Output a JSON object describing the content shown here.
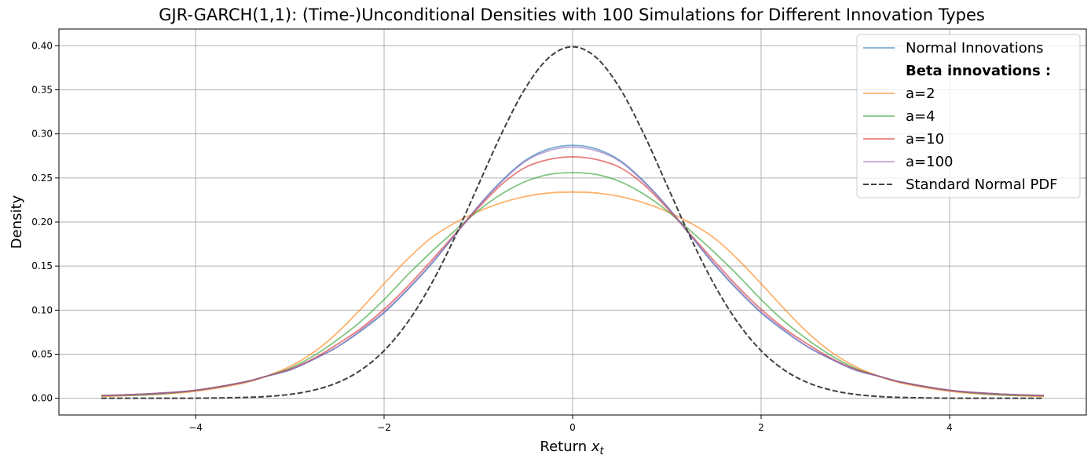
{
  "chart_data": {
    "type": "line",
    "title": "GJR-GARCH(1,1): (Time-)Unconditional Densities with 100 Simulations for Different Innovation Types",
    "xlabel_main": "Return ",
    "xlabel_var": "x",
    "xlabel_sub": "t",
    "ylabel": "Density",
    "xlim": [
      -5.45,
      5.45
    ],
    "ylim": [
      -0.019,
      0.419
    ],
    "grid": true,
    "legend_position": "top-right",
    "xticks": [
      -4,
      -2,
      0,
      2,
      4
    ],
    "xtick_labels": [
      "−4",
      "−2",
      "0",
      "2",
      "4"
    ],
    "yticks": [
      0.0,
      0.05,
      0.1,
      0.15,
      0.2,
      0.25,
      0.3,
      0.35,
      0.4
    ],
    "ytick_labels": [
      "0.00",
      "0.05",
      "0.10",
      "0.15",
      "0.20",
      "0.25",
      "0.30",
      "0.35",
      "0.40"
    ],
    "legend_header": "Beta innovations :",
    "x": [
      -5.0,
      -4.5,
      -4.0,
      -3.5,
      -3.25,
      -3.0,
      -2.75,
      -2.5,
      -2.25,
      -2.0,
      -1.75,
      -1.5,
      -1.25,
      -1.0,
      -0.75,
      -0.5,
      -0.25,
      0.0,
      0.25,
      0.5,
      0.75,
      1.0,
      1.25,
      1.5,
      1.75,
      2.0,
      2.25,
      2.5,
      2.75,
      3.0,
      3.25,
      3.5,
      4.0,
      4.5,
      5.0
    ],
    "series": [
      {
        "name": "Normal Innovations",
        "color": "#1f77b4",
        "dash": "solid",
        "values": [
          0.003,
          0.005,
          0.009,
          0.018,
          0.025,
          0.032,
          0.044,
          0.058,
          0.076,
          0.097,
          0.123,
          0.152,
          0.185,
          0.218,
          0.247,
          0.27,
          0.283,
          0.287,
          0.283,
          0.27,
          0.247,
          0.218,
          0.185,
          0.152,
          0.123,
          0.097,
          0.076,
          0.058,
          0.044,
          0.032,
          0.025,
          0.018,
          0.009,
          0.005,
          0.003
        ]
      },
      {
        "name": "a=2",
        "color": "#ff7f0e",
        "dash": "solid",
        "values": [
          0.002,
          0.004,
          0.008,
          0.017,
          0.025,
          0.036,
          0.052,
          0.074,
          0.101,
          0.13,
          0.158,
          0.182,
          0.199,
          0.212,
          0.222,
          0.229,
          0.233,
          0.234,
          0.233,
          0.229,
          0.222,
          0.212,
          0.199,
          0.182,
          0.158,
          0.13,
          0.101,
          0.074,
          0.052,
          0.036,
          0.025,
          0.017,
          0.008,
          0.004,
          0.002
        ]
      },
      {
        "name": "a=4",
        "color": "#2ca02c",
        "dash": "solid",
        "values": [
          0.003,
          0.004,
          0.009,
          0.018,
          0.025,
          0.034,
          0.048,
          0.066,
          0.087,
          0.112,
          0.14,
          0.166,
          0.19,
          0.213,
          0.232,
          0.246,
          0.254,
          0.256,
          0.254,
          0.246,
          0.232,
          0.213,
          0.19,
          0.166,
          0.14,
          0.112,
          0.087,
          0.066,
          0.048,
          0.034,
          0.025,
          0.018,
          0.009,
          0.004,
          0.003
        ]
      },
      {
        "name": "a=10",
        "color": "#d62728",
        "dash": "solid",
        "values": [
          0.003,
          0.005,
          0.009,
          0.018,
          0.025,
          0.033,
          0.045,
          0.061,
          0.079,
          0.101,
          0.127,
          0.156,
          0.186,
          0.216,
          0.243,
          0.262,
          0.271,
          0.274,
          0.271,
          0.262,
          0.243,
          0.216,
          0.186,
          0.156,
          0.127,
          0.101,
          0.079,
          0.061,
          0.045,
          0.033,
          0.025,
          0.018,
          0.009,
          0.005,
          0.003
        ]
      },
      {
        "name": "a=100",
        "color": "#9467bd",
        "dash": "solid",
        "values": [
          0.003,
          0.005,
          0.009,
          0.018,
          0.025,
          0.032,
          0.044,
          0.058,
          0.077,
          0.098,
          0.124,
          0.153,
          0.185,
          0.218,
          0.246,
          0.269,
          0.281,
          0.285,
          0.281,
          0.269,
          0.246,
          0.218,
          0.185,
          0.153,
          0.124,
          0.098,
          0.077,
          0.058,
          0.044,
          0.032,
          0.025,
          0.018,
          0.009,
          0.005,
          0.003
        ]
      },
      {
        "name": "Standard Normal PDF",
        "color": "#404040",
        "dash": "dashed",
        "values": [
          0.0,
          0.0,
          0.0001,
          0.0009,
          0.002,
          0.0044,
          0.0091,
          0.0175,
          0.0317,
          0.054,
          0.0863,
          0.1295,
          0.1826,
          0.242,
          0.3011,
          0.3521,
          0.3867,
          0.3989,
          0.3867,
          0.3521,
          0.3011,
          0.242,
          0.1826,
          0.1295,
          0.0863,
          0.054,
          0.0317,
          0.0175,
          0.0091,
          0.0044,
          0.002,
          0.0009,
          0.0001,
          0.0,
          0.0
        ]
      }
    ]
  }
}
